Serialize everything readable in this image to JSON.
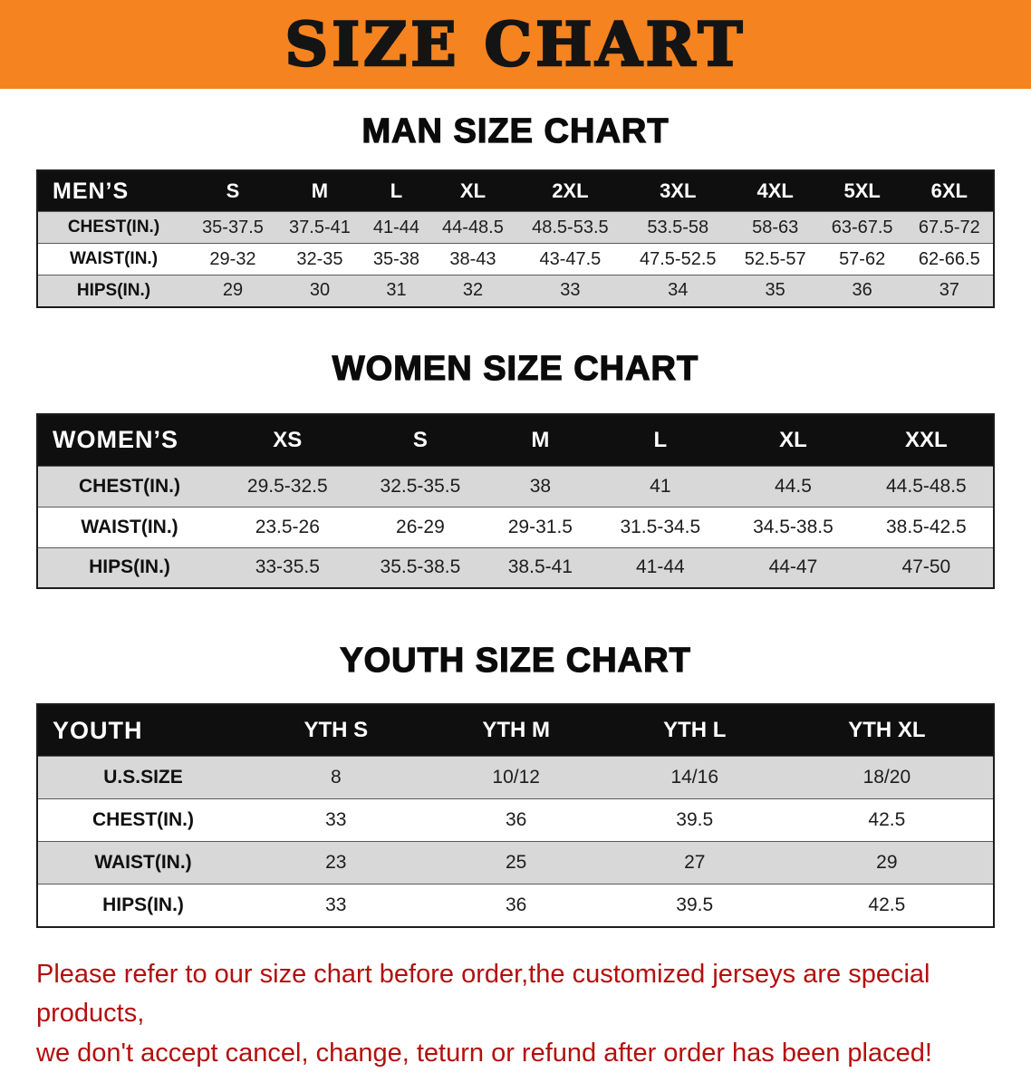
{
  "banner": {
    "title": "SIZE CHART"
  },
  "colors": {
    "banner_bg": "#f5831f",
    "header_bg": "#0f0f0f",
    "stripe_bg": "#d8d8d8",
    "note_red": "#b40f0f"
  },
  "men": {
    "heading": "MAN SIZE CHART",
    "header": [
      "MEN’S",
      "S",
      "M",
      "L",
      "XL",
      "2XL",
      "3XL",
      "4XL",
      "5XL",
      "6XL"
    ],
    "rows": [
      {
        "label": "CHEST(IN.)",
        "values": [
          "35-37.5",
          "37.5-41",
          "41-44",
          "44-48.5",
          "48.5-53.5",
          "53.5-58",
          "58-63",
          "63-67.5",
          "67.5-72"
        ]
      },
      {
        "label": "WAIST(IN.)",
        "values": [
          "29-32",
          "32-35",
          "35-38",
          "38-43",
          "43-47.5",
          "47.5-52.5",
          "52.5-57",
          "57-62",
          "62-66.5"
        ]
      },
      {
        "label": "HIPS(IN.)",
        "values": [
          "29",
          "30",
          "31",
          "32",
          "33",
          "34",
          "35",
          "36",
          "37"
        ]
      }
    ]
  },
  "women": {
    "heading": "WOMEN SIZE CHART",
    "header": [
      "WOMEN’S",
      "XS",
      "S",
      "M",
      "L",
      "XL",
      "XXL"
    ],
    "rows": [
      {
        "label": "CHEST(IN.)",
        "values": [
          "29.5-32.5",
          "32.5-35.5",
          "38",
          "41",
          "44.5",
          "44.5-48.5"
        ]
      },
      {
        "label": "WAIST(IN.)",
        "values": [
          "23.5-26",
          "26-29",
          "29-31.5",
          "31.5-34.5",
          "34.5-38.5",
          "38.5-42.5"
        ]
      },
      {
        "label": "HIPS(IN.)",
        "values": [
          "33-35.5",
          "35.5-38.5",
          "38.5-41",
          "41-44",
          "44-47",
          "47-50"
        ]
      }
    ]
  },
  "youth": {
    "heading": "YOUTH SIZE CHART",
    "header": [
      "YOUTH",
      "YTH S",
      "YTH M",
      "YTH L",
      "YTH XL"
    ],
    "rows": [
      {
        "label": "U.S.SIZE",
        "values": [
          "8",
          "10/12",
          "14/16",
          "18/20"
        ]
      },
      {
        "label": "CHEST(IN.)",
        "values": [
          "33",
          "36",
          "39.5",
          "42.5"
        ]
      },
      {
        "label": "WAIST(IN.)",
        "values": [
          "23",
          "25",
          "27",
          "29"
        ]
      },
      {
        "label": "HIPS(IN.)",
        "values": [
          "33",
          "36",
          "39.5",
          "42.5"
        ]
      }
    ]
  },
  "note": {
    "line1": "Please refer to our size chart before order,the customized jerseys are special products,",
    "line2": "we don't accept cancel, change, teturn or refund after order has been placed!"
  }
}
